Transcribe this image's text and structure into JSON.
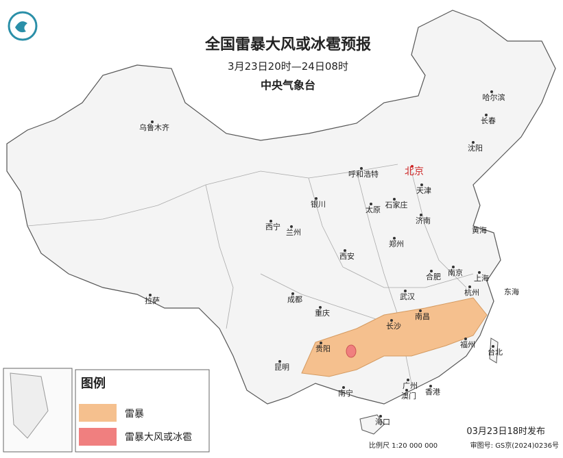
{
  "header": {
    "title": "全国雷暴大风或冰雹预报",
    "period": "3月23日20时—24日08时",
    "issuer": "中央气象台"
  },
  "cities": [
    "乌鲁木齐",
    "哈尔滨",
    "长春",
    "沈阳",
    "北京",
    "呼和浩特",
    "天津",
    "银川",
    "太原",
    "石家庄",
    "西宁",
    "兰州",
    "济南",
    "郑州",
    "西安",
    "合肥",
    "南京",
    "上海",
    "成都",
    "武汉",
    "杭州",
    "拉萨",
    "重庆",
    "南昌",
    "长沙",
    "贵阳",
    "福州",
    "台北",
    "昆明",
    "南宁",
    "广州",
    "澳门",
    "香港",
    "海口"
  ],
  "seas": [
    "黄海",
    "东海"
  ],
  "legend": {
    "title": "图例",
    "items": [
      "雷暴",
      "雷暴大风或冰雹"
    ]
  },
  "footer": {
    "issued": "03月23日18时发布",
    "scale": "比例尺 1:20 000 000",
    "approval": "审图号: GS京(2024)0236号"
  }
}
